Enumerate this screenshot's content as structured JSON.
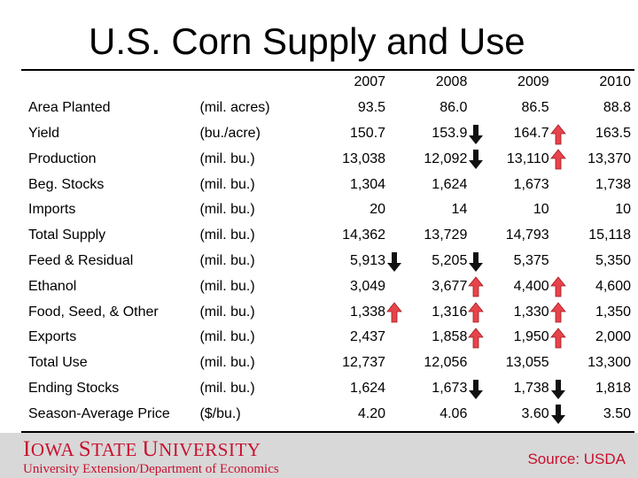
{
  "title": "U.S. Corn Supply and Use",
  "years": [
    "2007",
    "2008",
    "2009",
    "2010"
  ],
  "rows": [
    {
      "label": "Area Planted",
      "unit": "(mil. acres)",
      "values": [
        "93.5",
        "86.0",
        "86.5",
        "88.8"
      ],
      "arrows": [
        "",
        "",
        "",
        ""
      ]
    },
    {
      "label": "Yield",
      "unit": "(bu./acre)",
      "values": [
        "150.7",
        "153.9",
        "164.7",
        "163.5"
      ],
      "arrows": [
        "",
        "",
        "down",
        "up"
      ]
    },
    {
      "label": "Production",
      "unit": "(mil. bu.)",
      "values": [
        "13,038",
        "12,092",
        "13,110",
        "13,370"
      ],
      "arrows": [
        "",
        "",
        "down",
        "up"
      ]
    },
    {
      "label": "Beg. Stocks",
      "unit": "(mil. bu.)",
      "values": [
        "1,304",
        "1,624",
        "1,673",
        "1,738"
      ],
      "arrows": [
        "",
        "",
        "",
        ""
      ]
    },
    {
      "label": "Imports",
      "unit": "(mil. bu.)",
      "values": [
        "20",
        "14",
        "10",
        "10"
      ],
      "arrows": [
        "",
        "",
        "",
        ""
      ]
    },
    {
      "label": "Total Supply",
      "unit": "(mil. bu.)",
      "values": [
        "14,362",
        "13,729",
        "14,793",
        "15,118"
      ],
      "arrows": [
        "",
        "",
        "",
        ""
      ]
    },
    {
      "label": "Feed & Residual",
      "unit": "(mil. bu.)",
      "values": [
        "5,913",
        "5,205",
        "5,375",
        "5,350"
      ],
      "arrows": [
        "",
        "down",
        "down",
        ""
      ]
    },
    {
      "label": "Ethanol",
      "unit": "(mil. bu.)",
      "values": [
        "3,049",
        "3,677",
        "4,400",
        "4,600"
      ],
      "arrows": [
        "",
        "",
        "up",
        "up"
      ]
    },
    {
      "label": "Food, Seed, & Other",
      "unit": "(mil. bu.)",
      "values": [
        "1,338",
        "1,316",
        "1,330",
        "1,350"
      ],
      "arrows": [
        "",
        "up",
        "up",
        "up"
      ]
    },
    {
      "label": "Exports",
      "unit": "(mil. bu.)",
      "values": [
        "2,437",
        "1,858",
        "1,950",
        "2,000"
      ],
      "arrows": [
        "",
        "",
        "up",
        "up"
      ]
    },
    {
      "label": "Total Use",
      "unit": "(mil. bu.)",
      "values": [
        "12,737",
        "12,056",
        "13,055",
        "13,300"
      ],
      "arrows": [
        "",
        "",
        "",
        ""
      ]
    },
    {
      "label": "Ending Stocks",
      "unit": "(mil. bu.)",
      "values": [
        "1,624",
        "1,673",
        "1,738",
        "1,818"
      ],
      "arrows": [
        "",
        "",
        "down",
        "down"
      ]
    },
    {
      "label": "Season-Average Price",
      "unit": "($/bu.)",
      "values": [
        "4.20",
        "4.06",
        "3.60",
        "3.50"
      ],
      "arrows": [
        "",
        "",
        "",
        "down"
      ]
    }
  ],
  "colors": {
    "arrow_up": "#e8434a",
    "arrow_down": "#111111",
    "brand": "#c8102e",
    "footer_bg": "#d8d8d8"
  },
  "footer": {
    "logo_text": "Iowa State University",
    "subtitle": "University Extension/Department of Economics",
    "source": "Source: USDA"
  }
}
